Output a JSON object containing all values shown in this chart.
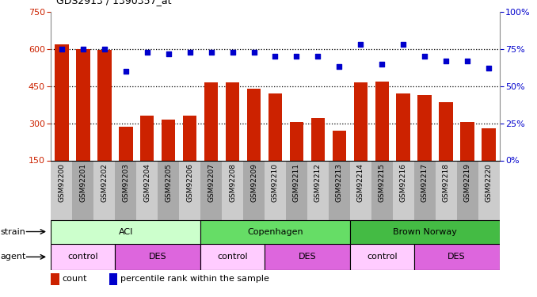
{
  "title": "GDS2913 / 1390357_at",
  "samples": [
    "GSM92200",
    "GSM92201",
    "GSM92202",
    "GSM92203",
    "GSM92204",
    "GSM92205",
    "GSM92206",
    "GSM92207",
    "GSM92208",
    "GSM92209",
    "GSM92210",
    "GSM92211",
    "GSM92212",
    "GSM92213",
    "GSM92214",
    "GSM92215",
    "GSM92216",
    "GSM92217",
    "GSM92218",
    "GSM92219",
    "GSM92220"
  ],
  "counts": [
    620,
    600,
    595,
    285,
    330,
    315,
    330,
    465,
    465,
    440,
    420,
    305,
    320,
    270,
    465,
    470,
    420,
    415,
    385,
    305,
    280
  ],
  "percentiles": [
    75,
    75,
    75,
    60,
    73,
    72,
    73,
    73,
    73,
    73,
    70,
    70,
    70,
    63,
    78,
    65,
    78,
    70,
    67,
    67,
    62
  ],
  "ylim_left": [
    150,
    750
  ],
  "ylim_right": [
    0,
    100
  ],
  "yticks_left": [
    150,
    300,
    450,
    600,
    750
  ],
  "yticks_right": [
    0,
    25,
    50,
    75,
    100
  ],
  "bar_color": "#cc2200",
  "dot_color": "#0000cc",
  "grid_lines": [
    300,
    450,
    600
  ],
  "strain_groups": [
    {
      "label": "ACI",
      "start": 0,
      "end": 7,
      "color": "#ccffcc"
    },
    {
      "label": "Copenhagen",
      "start": 7,
      "end": 14,
      "color": "#66dd66"
    },
    {
      "label": "Brown Norway",
      "start": 14,
      "end": 21,
      "color": "#44bb44"
    }
  ],
  "agent_groups": [
    {
      "label": "control",
      "start": 0,
      "end": 3,
      "color": "#ffccff"
    },
    {
      "label": "DES",
      "start": 3,
      "end": 7,
      "color": "#dd66dd"
    },
    {
      "label": "control",
      "start": 7,
      "end": 10,
      "color": "#ffccff"
    },
    {
      "label": "DES",
      "start": 10,
      "end": 14,
      "color": "#dd66dd"
    },
    {
      "label": "control",
      "start": 14,
      "end": 17,
      "color": "#ffccff"
    },
    {
      "label": "DES",
      "start": 17,
      "end": 21,
      "color": "#dd66dd"
    }
  ],
  "tick_label_color_left": "#cc2200",
  "tick_label_color_right": "#0000cc"
}
